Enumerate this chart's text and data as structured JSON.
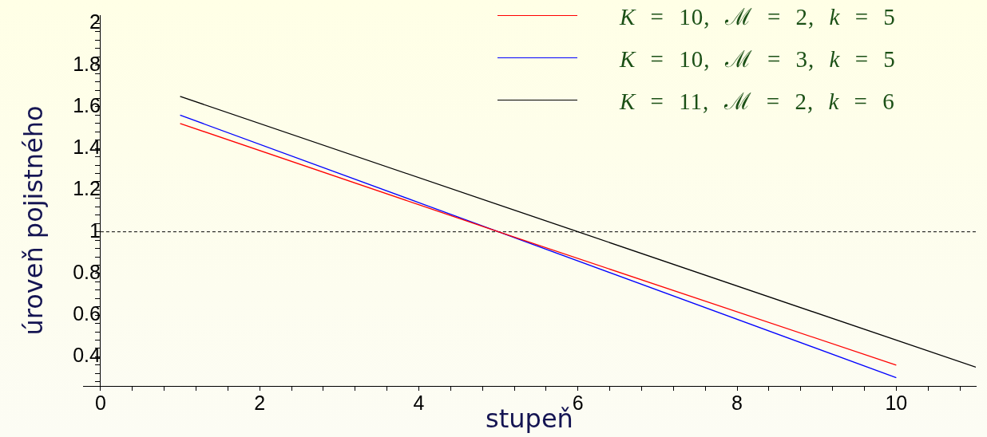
{
  "chart_data": {
    "type": "line",
    "xlabel": "stupeň",
    "ylabel": "úroveň pojistného",
    "series": [
      {
        "name": "K = 10, ℳ = 2, k = 5",
        "color": "#ff0000",
        "x": [
          1,
          5,
          10
        ],
        "values": [
          1.52,
          1,
          0.36
        ]
      },
      {
        "name": "K = 10, ℳ = 3, k = 5",
        "color": "#0000ff",
        "x": [
          1,
          5,
          10
        ],
        "values": [
          1.56,
          1,
          0.3
        ]
      },
      {
        "name": "K = 11, ℳ = 2, k = 6",
        "color": "#000000",
        "x": [
          1,
          6,
          11
        ],
        "values": [
          1.65,
          1,
          0.35
        ]
      }
    ],
    "xlim": [
      -0.22,
      11
    ],
    "ylim": [
      0.26,
      2.04
    ],
    "xticks": [
      0,
      {
        "value": 0.4,
        "label": null
      },
      {
        "value": 0.8,
        "label": null
      },
      {
        "value": 1.2,
        "label": null
      },
      {
        "value": 1.6,
        "label": null
      },
      2,
      {
        "value": 2.4,
        "label": null
      },
      {
        "value": 2.8,
        "label": null
      },
      {
        "value": 3.2,
        "label": null
      },
      {
        "value": 3.6,
        "label": null
      },
      4,
      {
        "value": 4.4,
        "label": null
      },
      {
        "value": 4.8,
        "label": null
      },
      {
        "value": 5.2,
        "label": null
      },
      {
        "value": 5.6,
        "label": null
      },
      6,
      {
        "value": 6.4,
        "label": null
      },
      {
        "value": 6.8,
        "label": null
      },
      {
        "value": 7.2,
        "label": null
      },
      {
        "value": 7.6,
        "label": null
      },
      8,
      {
        "value": 8.4,
        "label": null
      },
      {
        "value": 8.8,
        "label": null
      },
      {
        "value": 9.2,
        "label": null
      },
      {
        "value": 9.6,
        "label": null
      },
      10,
      {
        "value": 10.4,
        "label": null
      },
      {
        "value": 10.8,
        "label": null
      }
    ],
    "yticks": [
      {
        "value": 0.28,
        "label": null
      },
      {
        "value": 0.32,
        "label": null
      },
      {
        "value": 0.36,
        "label": null
      },
      0.4,
      {
        "value": 0.44,
        "label": null
      },
      {
        "value": 0.48,
        "label": null
      },
      {
        "value": 0.52,
        "label": null
      },
      {
        "value": 0.56,
        "label": null
      },
      0.6,
      {
        "value": 0.64,
        "label": null
      },
      {
        "value": 0.68,
        "label": null
      },
      {
        "value": 0.72,
        "label": null
      },
      {
        "value": 0.76,
        "label": null
      },
      0.8,
      {
        "value": 0.84,
        "label": null
      },
      {
        "value": 0.88,
        "label": null
      },
      {
        "value": 0.92,
        "label": null
      },
      {
        "value": 0.96,
        "label": null
      },
      1,
      {
        "value": 1.04,
        "label": null
      },
      {
        "value": 1.08,
        "label": null
      },
      {
        "value": 1.12,
        "label": null
      },
      {
        "value": 1.16,
        "label": null
      },
      1.2,
      {
        "value": 1.24,
        "label": null
      },
      {
        "value": 1.28,
        "label": null
      },
      {
        "value": 1.32,
        "label": null
      },
      {
        "value": 1.36,
        "label": null
      },
      1.4,
      {
        "value": 1.44,
        "label": null
      },
      {
        "value": 1.48,
        "label": null
      },
      {
        "value": 1.52,
        "label": null
      },
      {
        "value": 1.56,
        "label": null
      },
      1.6,
      {
        "value": 1.64,
        "label": null
      },
      {
        "value": 1.68,
        "label": null
      },
      {
        "value": 1.72,
        "label": null
      },
      {
        "value": 1.76,
        "label": null
      },
      1.8,
      {
        "value": 1.84,
        "label": null
      },
      {
        "value": 1.88,
        "label": null
      },
      {
        "value": 1.92,
        "label": null
      },
      {
        "value": 1.96,
        "label": null
      },
      2
    ],
    "ref_lines": [
      {
        "axis": "y",
        "value": 1,
        "color": "#000000",
        "line_style": "dashed"
      }
    ],
    "legend": "top right",
    "marker": "none"
  }
}
